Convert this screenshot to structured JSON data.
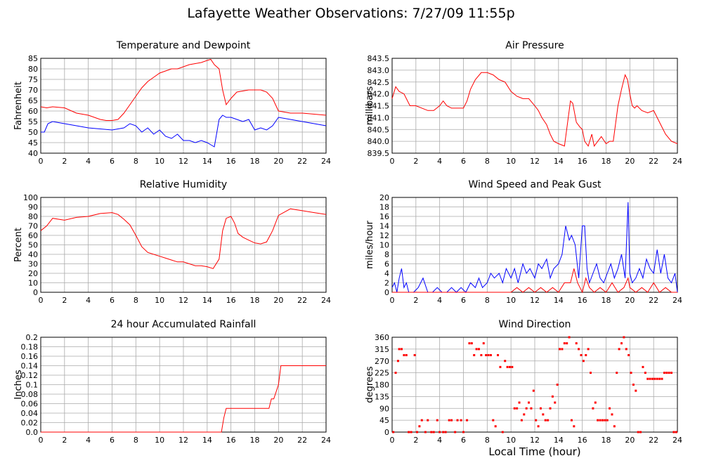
{
  "page": {
    "title": "Lafayette Weather Observations: 7/27/09 11:55p",
    "xlabel": "Local Time (hour)"
  },
  "colors": {
    "red": "#ff0000",
    "blue": "#0000ff",
    "grid": "#aaaaaa"
  },
  "chart_data": [
    {
      "id": "temperature",
      "type": "line",
      "title": "Temperature and Dewpoint",
      "ylabel": "Fahrenheit",
      "xlim": [
        0,
        24
      ],
      "ylim": [
        40,
        85
      ],
      "xticks": [
        0,
        2,
        4,
        6,
        8,
        10,
        12,
        14,
        16,
        18,
        20,
        22,
        24
      ],
      "yticks": [
        40,
        45,
        50,
        55,
        60,
        65,
        70,
        75,
        80,
        85
      ],
      "series": [
        {
          "color": "#ff0000",
          "x": [
            0,
            0.5,
            1,
            2,
            3,
            4,
            5,
            5.5,
            6,
            6.5,
            7,
            7.5,
            8,
            8.5,
            9,
            9.5,
            10,
            10.5,
            11,
            11.5,
            12,
            12.5,
            13,
            13.5,
            14,
            14.3,
            14.6,
            15,
            15.3,
            15.6,
            16,
            16.5,
            17,
            17.5,
            18,
            18.5,
            19,
            19.5,
            20,
            21,
            22,
            23,
            24
          ],
          "y": [
            62,
            61.5,
            62,
            61.5,
            59,
            58,
            56,
            55.5,
            55.5,
            56,
            59,
            63,
            67,
            71,
            74,
            76,
            78,
            79,
            80,
            80,
            81,
            82,
            82.5,
            83,
            84,
            84.5,
            82,
            80,
            70,
            63,
            66,
            69,
            69.5,
            70,
            70,
            70,
            69,
            66,
            60,
            59,
            59,
            58.5,
            58
          ]
        },
        {
          "color": "#0000ff",
          "x": [
            0,
            0.3,
            0.6,
            1,
            2,
            3,
            4,
            5,
            6,
            7,
            7.5,
            8,
            8.5,
            9,
            9.5,
            10,
            10.5,
            11,
            11.5,
            12,
            12.5,
            13,
            13.5,
            14,
            14.3,
            14.6,
            15,
            15.3,
            15.6,
            16,
            16.5,
            17,
            17.5,
            18,
            18.5,
            19,
            19.5,
            20,
            21,
            22,
            23,
            24
          ],
          "y": [
            50,
            50,
            54,
            55,
            54,
            53,
            52,
            51.5,
            51,
            52,
            54,
            53,
            50,
            52,
            49,
            51,
            48,
            47,
            49,
            46,
            46,
            45,
            46,
            45,
            44,
            43,
            56,
            58,
            57,
            57,
            56,
            55,
            56,
            51,
            52,
            51,
            53,
            57,
            56,
            55,
            54,
            53
          ]
        }
      ]
    },
    {
      "id": "pressure",
      "type": "line",
      "title": "Air Pressure",
      "ylabel": "millibars",
      "xlim": [
        0,
        24
      ],
      "ylim": [
        839.5,
        843.5
      ],
      "xticks": [
        0,
        2,
        4,
        6,
        8,
        10,
        12,
        14,
        16,
        18,
        20,
        22,
        24
      ],
      "yticks": [
        839.5,
        840.0,
        840.5,
        841.0,
        841.5,
        842.0,
        842.5,
        843.0,
        843.5
      ],
      "ytick_labels": [
        "839.5",
        "840.0",
        "840.5",
        "841.0",
        "841.5",
        "842.0",
        "842.5",
        "843.0",
        "843.5"
      ],
      "series": [
        {
          "color": "#ff0000",
          "x": [
            0,
            0.3,
            0.6,
            1,
            1.5,
            2,
            3,
            3.5,
            4,
            4.3,
            4.6,
            5,
            6,
            6.3,
            6.6,
            7,
            7.5,
            8,
            8.5,
            9,
            9.5,
            10,
            10.5,
            11,
            11.5,
            12,
            12.3,
            12.6,
            13,
            13.3,
            13.6,
            14,
            14.5,
            15,
            15.2,
            15.5,
            15.8,
            16,
            16.2,
            16.5,
            16.8,
            17,
            17.3,
            17.6,
            18,
            18.3,
            18.6,
            19,
            19.3,
            19.6,
            19.8,
            20,
            20.2,
            20.4,
            20.6,
            21,
            21.5,
            22,
            22.5,
            23,
            23.5,
            24
          ],
          "y": [
            841.8,
            842.3,
            842.1,
            842.0,
            841.5,
            841.5,
            841.3,
            841.3,
            841.5,
            841.7,
            841.5,
            841.4,
            841.4,
            841.7,
            842.2,
            842.6,
            842.9,
            842.9,
            842.8,
            842.6,
            842.5,
            842.1,
            841.9,
            841.8,
            841.8,
            841.5,
            841.3,
            841.0,
            840.7,
            840.3,
            840.0,
            839.9,
            839.8,
            841.7,
            841.6,
            840.8,
            840.6,
            840.5,
            840.0,
            839.8,
            840.3,
            839.8,
            840.0,
            840.2,
            839.9,
            840.0,
            840.0,
            841.5,
            842.2,
            842.8,
            842.6,
            842.0,
            841.5,
            841.4,
            841.5,
            841.3,
            841.2,
            841.3,
            840.8,
            840.3,
            840.0,
            839.9
          ]
        }
      ]
    },
    {
      "id": "humidity",
      "type": "line",
      "title": "Relative Humidity",
      "ylabel": "Percent",
      "xlim": [
        0,
        24
      ],
      "ylim": [
        0,
        100
      ],
      "xticks": [
        0,
        2,
        4,
        6,
        8,
        10,
        12,
        14,
        16,
        18,
        20,
        22,
        24
      ],
      "yticks": [
        0,
        10,
        20,
        30,
        40,
        50,
        60,
        70,
        80,
        90,
        100
      ],
      "series": [
        {
          "color": "#ff0000",
          "x": [
            0,
            0.5,
            1,
            2,
            3,
            4,
            5,
            6,
            6.5,
            7,
            7.5,
            8,
            8.5,
            9,
            9.5,
            10,
            10.5,
            11,
            11.5,
            12,
            12.5,
            13,
            13.5,
            14,
            14.5,
            15,
            15.3,
            15.6,
            16,
            16.3,
            16.6,
            17,
            17.5,
            18,
            18.5,
            19,
            19.5,
            20,
            21,
            22,
            23,
            24
          ],
          "y": [
            65,
            70,
            78,
            76,
            79,
            80,
            83,
            84,
            82,
            77,
            71,
            60,
            48,
            42,
            40,
            38,
            36,
            34,
            32,
            32,
            30,
            28,
            28,
            27,
            25,
            35,
            65,
            78,
            80,
            73,
            62,
            58,
            55,
            52,
            51,
            53,
            65,
            81,
            88,
            86,
            84,
            82
          ]
        }
      ]
    },
    {
      "id": "wind_speed",
      "type": "line",
      "title": "Wind Speed and Peak Gust",
      "ylabel": "miles/hour",
      "xlim": [
        0,
        24
      ],
      "ylim": [
        0,
        20
      ],
      "xticks": [
        0,
        2,
        4,
        6,
        8,
        10,
        12,
        14,
        16,
        18,
        20,
        22,
        24
      ],
      "yticks": [
        0,
        2,
        4,
        6,
        8,
        10,
        12,
        14,
        16,
        18,
        20
      ],
      "series": [
        {
          "color": "#0000ff",
          "x": [
            0,
            0.2,
            0.4,
            0.6,
            0.8,
            1,
            1.2,
            1.4,
            1.8,
            2.2,
            2.6,
            3,
            3.4,
            3.8,
            4.2,
            4.6,
            5,
            5.4,
            5.8,
            6.2,
            6.6,
            7,
            7.3,
            7.6,
            8,
            8.3,
            8.6,
            9,
            9.3,
            9.6,
            10,
            10.3,
            10.6,
            11,
            11.3,
            11.6,
            12,
            12.3,
            12.6,
            13,
            13.3,
            13.6,
            14,
            14.3,
            14.6,
            14.9,
            15.1,
            15.4,
            15.7,
            16,
            16.2,
            16.4,
            16.6,
            16.9,
            17.2,
            17.5,
            17.8,
            18.1,
            18.4,
            18.7,
            19,
            19.3,
            19.6,
            19.85,
            20,
            20.2,
            20.5,
            20.8,
            21.1,
            21.4,
            21.7,
            22,
            22.3,
            22.6,
            22.9,
            23.2,
            23.5,
            23.8,
            24
          ],
          "y": [
            1,
            2,
            0,
            3,
            5,
            1,
            2,
            0,
            0,
            1,
            3,
            0,
            0,
            1,
            0,
            0,
            1,
            0,
            1,
            0,
            2,
            1,
            3,
            1,
            2,
            4,
            3,
            4,
            2,
            5,
            3,
            5,
            2,
            6,
            4,
            5,
            3,
            6,
            5,
            7,
            3,
            5,
            6,
            8,
            14,
            11,
            12,
            10,
            3,
            14,
            14,
            5,
            2,
            4,
            6,
            3,
            2,
            4,
            6,
            3,
            5,
            8,
            3,
            19,
            4,
            2,
            3,
            5,
            3,
            7,
            5,
            4,
            9,
            4,
            8,
            3,
            2,
            4,
            0
          ]
        },
        {
          "color": "#ff0000",
          "x": [
            0,
            9,
            10,
            10.5,
            11,
            11.5,
            12,
            12.5,
            13,
            13.5,
            14,
            14.5,
            15,
            15.3,
            15.6,
            16,
            16.3,
            16.6,
            17,
            17.5,
            18,
            18.5,
            19,
            19.5,
            19.85,
            20,
            20.5,
            21,
            21.5,
            22,
            22.5,
            23,
            23.5,
            24
          ],
          "y": [
            0,
            0,
            0,
            1,
            0,
            1,
            0,
            1,
            0,
            1,
            0,
            2,
            2,
            5,
            2,
            0,
            3,
            1,
            0,
            1,
            0,
            2,
            0,
            1,
            3,
            1,
            0,
            1,
            0,
            2,
            0,
            1,
            0,
            0
          ]
        }
      ]
    },
    {
      "id": "rainfall",
      "type": "line",
      "title": "24 hour Accumulated Rainfall",
      "ylabel": "Inches",
      "xlim": [
        0,
        24
      ],
      "ylim": [
        0,
        0.2
      ],
      "xticks": [
        0,
        2,
        4,
        6,
        8,
        10,
        12,
        14,
        16,
        18,
        20,
        22,
        24
      ],
      "yticks": [
        0,
        0.02,
        0.04,
        0.06,
        0.08,
        0.1,
        0.12,
        0.14,
        0.16,
        0.18,
        0.2
      ],
      "ytick_labels": [
        "0.0",
        "0.02",
        "0.04",
        "0.06",
        "0.08",
        "0.1",
        "0.12",
        "0.14",
        "0.16",
        "0.18",
        "0.2"
      ],
      "series": [
        {
          "color": "#ff0000",
          "x": [
            0,
            15.2,
            15.4,
            15.6,
            19.2,
            19.4,
            19.6,
            20,
            20.2,
            24
          ],
          "y": [
            0,
            0,
            0.03,
            0.05,
            0.05,
            0.07,
            0.07,
            0.1,
            0.14,
            0.14
          ]
        }
      ]
    },
    {
      "id": "wind_direction",
      "type": "scatter",
      "title": "Wind Direction",
      "ylabel": "degrees",
      "xlim": [
        0,
        24
      ],
      "ylim": [
        0,
        360
      ],
      "xticks": [
        0,
        2,
        4,
        6,
        8,
        10,
        12,
        14,
        16,
        18,
        20,
        22,
        24
      ],
      "yticks": [
        0,
        45,
        90,
        135,
        180,
        225,
        270,
        315,
        360
      ],
      "series": [
        {
          "color": "#ff0000",
          "x": [
            0.1,
            0.3,
            0.5,
            0.6,
            0.8,
            1.0,
            1.2,
            1.4,
            1.6,
            1.9,
            2.1,
            2.3,
            2.5,
            2.8,
            3.0,
            3.3,
            3.5,
            3.8,
            4.0,
            4.3,
            4.5,
            4.8,
            5.0,
            5.3,
            5.5,
            5.8,
            6.0,
            6.3,
            6.5,
            6.7,
            6.9,
            7.1,
            7.3,
            7.5,
            7.7,
            7.9,
            8.1,
            8.3,
            8.5,
            8.7,
            8.9,
            9.1,
            9.3,
            9.5,
            9.7,
            9.9,
            10.1,
            10.3,
            10.5,
            10.7,
            10.9,
            11.1,
            11.3,
            11.5,
            11.7,
            11.9,
            12.1,
            12.3,
            12.5,
            12.7,
            12.9,
            13.1,
            13.3,
            13.5,
            13.7,
            13.9,
            14.1,
            14.3,
            14.5,
            14.7,
            14.9,
            15.1,
            15.3,
            15.5,
            15.7,
            15.9,
            16.1,
            16.3,
            16.5,
            16.7,
            16.9,
            17.1,
            17.3,
            17.5,
            17.7,
            17.9,
            18.1,
            18.3,
            18.5,
            18.7,
            18.9,
            19.1,
            19.3,
            19.5,
            19.7,
            19.9,
            20.1,
            20.3,
            20.5,
            20.7,
            20.9,
            21.1,
            21.3,
            21.5,
            21.7,
            21.9,
            22.1,
            22.3,
            22.5,
            22.7,
            22.9,
            23.1,
            23.3,
            23.5,
            23.7,
            23.9
          ],
          "y": [
            0,
            225,
            270,
            315,
            315,
            292,
            292,
            0,
            0,
            292,
            0,
            22,
            45,
            0,
            45,
            0,
            0,
            45,
            0,
            0,
            0,
            45,
            45,
            0,
            45,
            45,
            0,
            45,
            337,
            337,
            292,
            315,
            315,
            292,
            337,
            292,
            292,
            292,
            45,
            22,
            292,
            247,
            0,
            270,
            247,
            247,
            247,
            90,
            90,
            112,
            45,
            67,
            90,
            112,
            90,
            157,
            45,
            22,
            90,
            67,
            45,
            45,
            90,
            135,
            112,
            180,
            315,
            315,
            337,
            337,
            360,
            45,
            22,
            337,
            315,
            292,
            270,
            292,
            315,
            225,
            90,
            112,
            45,
            45,
            45,
            45,
            45,
            90,
            67,
            22,
            225,
            315,
            337,
            360,
            315,
            292,
            225,
            180,
            157,
            0,
            0,
            247,
            225,
            202,
            202,
            202,
            202,
            202,
            202,
            202,
            225,
            225,
            225,
            225,
            0,
            0
          ]
        }
      ]
    }
  ]
}
